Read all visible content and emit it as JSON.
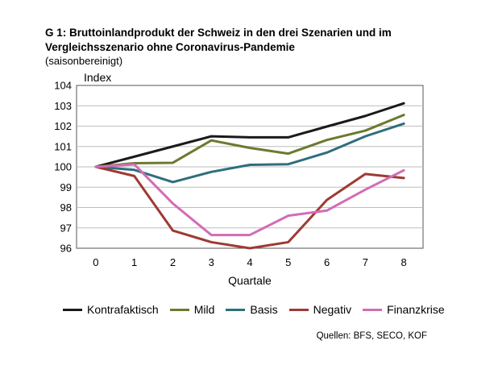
{
  "chart_data": {
    "type": "line",
    "title_line1": "G 1: Bruttoinlandprodukt der Schweiz in den drei Szenarien und im",
    "title_line2": "Vergleichsszenario ohne Coronavirus-Pandemie",
    "subtitle": "(saisonbereinigt)",
    "ylabel": "Index",
    "xlabel": "Quartale",
    "x": [
      0,
      1,
      2,
      3,
      4,
      5,
      6,
      7,
      8
    ],
    "ylim": [
      96,
      104
    ],
    "yticks": [
      96,
      97,
      98,
      99,
      100,
      101,
      102,
      103,
      104
    ],
    "grid": true,
    "legend_position": "bottom",
    "series": [
      {
        "name": "Kontrafaktisch",
        "color": "#1a1a1a",
        "values": [
          100.0,
          100.5,
          101.0,
          101.5,
          101.45,
          101.45,
          101.98,
          102.5,
          103.12
        ]
      },
      {
        "name": "Mild",
        "color": "#6b7a2e",
        "values": [
          100.0,
          100.18,
          100.2,
          101.3,
          100.93,
          100.65,
          101.32,
          101.78,
          102.55
        ]
      },
      {
        "name": "Basis",
        "color": "#2e6f7e",
        "values": [
          100.0,
          99.85,
          99.25,
          99.75,
          100.1,
          100.13,
          100.7,
          101.5,
          102.12
        ]
      },
      {
        "name": "Negativ",
        "color": "#9e3a33",
        "values": [
          100.0,
          99.55,
          96.87,
          96.3,
          96.0,
          96.3,
          98.37,
          99.65,
          99.45
        ]
      },
      {
        "name": "Finanzkrise",
        "color": "#d36cb6",
        "values": [
          100.0,
          100.12,
          98.2,
          96.65,
          96.65,
          97.6,
          97.85,
          98.88,
          99.83
        ]
      }
    ],
    "source": "Quellen: BFS, SECO, KOF"
  }
}
